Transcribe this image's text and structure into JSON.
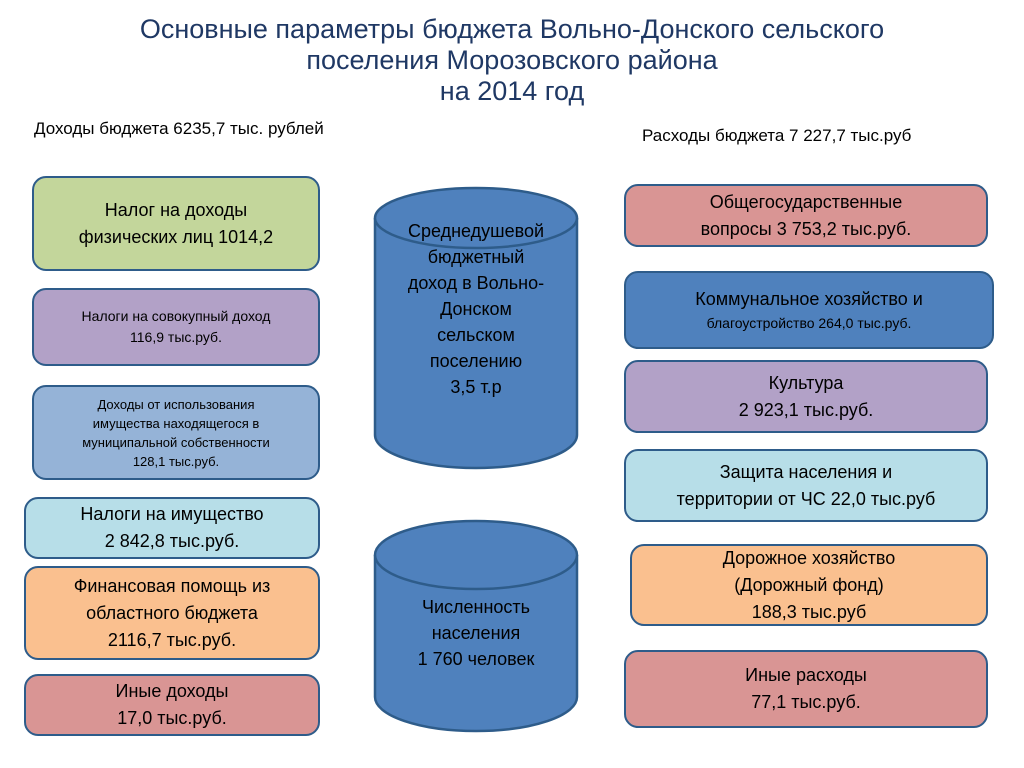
{
  "title": {
    "line1": "Основные параметры  бюджета  Вольно-Донского сельского",
    "line2": "поселения  Морозовского района",
    "line3": "на 2014 год"
  },
  "income_header": "Доходы бюджета  6235,7 тыс. рублей",
  "expense_header": "Расходы бюджета 7 227,7 тыс.руб",
  "income": [
    {
      "label": "Налог на доходы\nфизических лиц 1014,2",
      "color": "#C3D69B"
    },
    {
      "label": "Налоги на совокупный доход\n116,9 тыс.руб.",
      "color": "#B2A1C7"
    },
    {
      "label": "Доходы  от использования\nимущества находящегося в\nмуниципальной собственности\n128,1 тыс.руб.",
      "color": "#95B3D7"
    },
    {
      "label": "Налоги на имущество\n2 842,8 тыс.руб.",
      "color": "#B7DEE8"
    },
    {
      "label": "Финансовая помощь из\nобластного бюджета\n2116,7 тыс.руб.",
      "color": "#FAC08F"
    },
    {
      "label": "Иные доходы\n17,0 тыс.руб.",
      "color": "#D99594"
    }
  ],
  "expenses": [
    {
      "label": "Общегосударственные\nвопросы 3 753,2 тыс.руб.",
      "color": "#D99594"
    },
    {
      "label_main": "Коммунальное хозяйство и",
      "label_sub": "благоустройство 264,0 тыс.руб.",
      "color": "#4F81BD"
    },
    {
      "label": "Культура\n2 923,1 тыс.руб.",
      "color": "#B2A1C7"
    },
    {
      "label": "Защита населения и\nтерритории от ЧС 22,0 тыс.руб",
      "color": "#B7DEE8"
    },
    {
      "label": "Дорожное хозяйство\n(Дорожный фонд)\n188,3 тыс.руб",
      "color": "#FAC08F"
    },
    {
      "label": "Иные расходы\n77,1 тыс.руб.",
      "color": "#D99594"
    }
  ],
  "cylinders": [
    {
      "label": "Среднедушевой\nбюджетный\nдоход  в Вольно-\nДонском\nсельском\nпоселению\n3,5 т.р",
      "color": "#4F81BD"
    },
    {
      "label": "Численность\nнаселения\n1 760 человек",
      "color": "#4F81BD"
    }
  ]
}
